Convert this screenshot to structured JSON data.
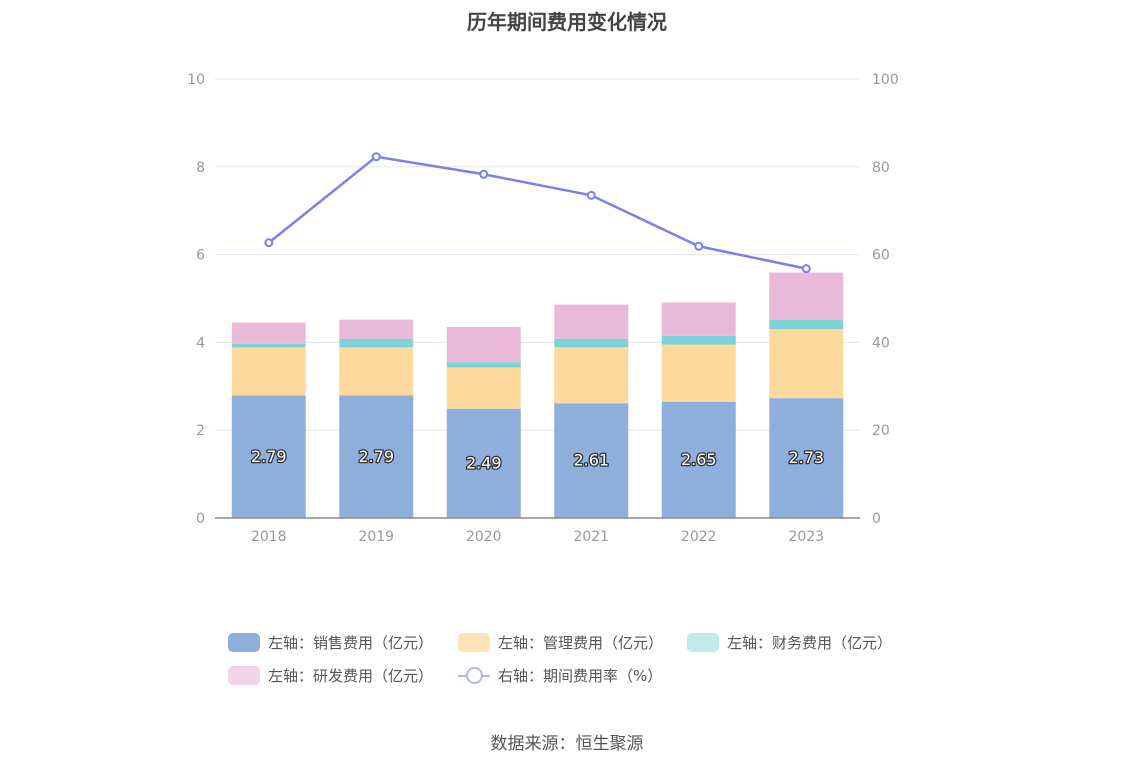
{
  "chart_data": {
    "type": "bar",
    "title": "历年期间费用变化情况",
    "categories": [
      "2018",
      "2019",
      "2020",
      "2021",
      "2022",
      "2023"
    ],
    "stacked": true,
    "series": [
      {
        "name": "左轴：销售费用（亿元）",
        "axis": "left",
        "color": "#8eaedb",
        "values": [
          2.79,
          2.79,
          2.49,
          2.61,
          2.65,
          2.73
        ],
        "data_labels": [
          "2.79",
          "2.79",
          "2.49",
          "2.61",
          "2.65",
          "2.73"
        ]
      },
      {
        "name": "左轴：管理费用（亿元）",
        "axis": "left",
        "color": "#fdd99b",
        "values": [
          1.1,
          1.1,
          0.94,
          1.28,
          1.3,
          1.57
        ]
      },
      {
        "name": "左轴：财务费用（亿元）",
        "axis": "left",
        "color": "#7fd3d8",
        "values": [
          0.08,
          0.19,
          0.12,
          0.19,
          0.2,
          0.21
        ]
      },
      {
        "name": "左轴：研发费用（亿元）",
        "axis": "left",
        "color": "#e9b9da",
        "values": [
          0.48,
          0.44,
          0.8,
          0.78,
          0.76,
          1.08
        ]
      },
      {
        "name": "右轴：期间费用率（%）",
        "axis": "right",
        "type": "line",
        "color": "#7b7ff0",
        "values": [
          62.7,
          82.3,
          78.3,
          73.5,
          61.9,
          56.8
        ]
      }
    ],
    "y_left": {
      "ylim": [
        0,
        10
      ],
      "ticks": [
        "0",
        "2",
        "4",
        "6",
        "8",
        "10"
      ]
    },
    "y_right": {
      "ylim": [
        0,
        100
      ],
      "ticks": [
        "0",
        "20",
        "40",
        "60",
        "80",
        "100"
      ]
    },
    "grid": true,
    "legend_position": "bottom"
  },
  "legend": [
    {
      "label": "左轴：销售费用（亿元）",
      "color": "#8eaedb",
      "kind": "box"
    },
    {
      "label": "左轴：管理费用（亿元）",
      "color": "#fde3b6",
      "kind": "box"
    },
    {
      "label": "左轴：财务费用（亿元）",
      "color": "#c2e9eb",
      "kind": "box"
    },
    {
      "label": "左轴：研发费用（亿元）",
      "color": "#f2d4e9",
      "kind": "box"
    },
    {
      "label": "右轴：期间费用率（%）",
      "color": "#b3b5f0",
      "kind": "line"
    }
  ],
  "source": "数据来源：恒生聚源"
}
